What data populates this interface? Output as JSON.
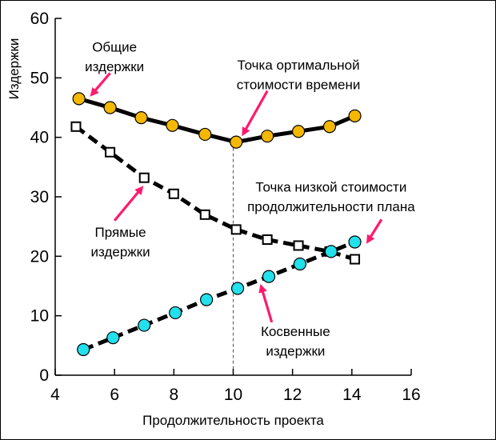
{
  "chart_data": {
    "type": "line",
    "xlabel": "Продолжительность проекта",
    "ylabel": "Издержки",
    "xlim": [
      4,
      16
    ],
    "ylim": [
      0,
      60
    ],
    "x_ticks": [
      4,
      6,
      8,
      10,
      12,
      14,
      16
    ],
    "y_ticks": [
      0,
      10,
      20,
      30,
      40,
      50,
      60
    ],
    "grid": false,
    "series": [
      {
        "key": "total",
        "marker": "circle",
        "color": "#f5b800",
        "x": [
          4.8,
          5.85,
          6.9,
          7.95,
          9.05,
          10.1,
          11.15,
          12.2,
          13.25,
          14.1
        ],
        "y": [
          46.5,
          45.0,
          43.3,
          42.0,
          40.5,
          39.2,
          40.2,
          41.0,
          41.8,
          43.6
        ]
      },
      {
        "key": "direct",
        "marker": "square",
        "color": "#ffffff",
        "x": [
          4.7,
          5.85,
          7.0,
          8.0,
          9.05,
          10.1,
          11.15,
          12.2,
          13.25,
          14.1
        ],
        "y": [
          41.8,
          37.5,
          33.2,
          30.5,
          27.0,
          24.5,
          22.8,
          21.8,
          20.8,
          19.5
        ]
      },
      {
        "key": "indirect",
        "marker": "circle",
        "color": "#22e0ec",
        "x": [
          4.95,
          5.95,
          7.0,
          8.05,
          9.1,
          10.15,
          11.2,
          12.25,
          13.3,
          14.1
        ],
        "y": [
          4.3,
          6.3,
          8.4,
          10.5,
          12.7,
          14.6,
          16.6,
          18.7,
          20.8,
          22.4
        ]
      }
    ],
    "reference_line": {
      "x": 10.0,
      "style": "dashed"
    },
    "annotations": [
      {
        "key": "total-label",
        "lines": [
          "Общие",
          "издержки"
        ],
        "anchor": "middle",
        "text_at": [
          6.0,
          54.4
        ],
        "line_gap": 3.3,
        "arrow_from": [
          5.85,
          50.8
        ],
        "arrow_to": [
          5.25,
          47.3
        ]
      },
      {
        "key": "optimal-point",
        "lines": [
          "Точка ортимальной",
          "стоимости времени"
        ],
        "anchor": "middle",
        "text_at": [
          12.2,
          51.4
        ],
        "line_gap": 3.3,
        "arrow_from": [
          11.15,
          47.8
        ],
        "arrow_to": [
          10.35,
          40.7
        ]
      },
      {
        "key": "direct-label",
        "lines": [
          "Прямые",
          "издержки"
        ],
        "anchor": "middle",
        "text_at": [
          6.2,
          23.3
        ],
        "line_gap": 3.3,
        "arrow_from": [
          6.0,
          26.0
        ],
        "arrow_to": [
          6.9,
          31.4
        ]
      },
      {
        "key": "low-cost-point",
        "lines": [
          "Точка низкой стоимости",
          "продолжительности плана"
        ],
        "anchor": "middle",
        "text_at": [
          13.3,
          30.9
        ],
        "line_gap": 3.3,
        "arrow_from": [
          15.0,
          26.2
        ],
        "arrow_to": [
          14.55,
          22.6
        ]
      },
      {
        "key": "indirect-label",
        "lines": [
          "Косвенные",
          "издержки"
        ],
        "anchor": "middle",
        "text_at": [
          12.1,
          6.6
        ],
        "line_gap": 3.3,
        "arrow_from": [
          11.3,
          8.9
        ],
        "arrow_to": [
          10.95,
          14.8
        ]
      }
    ],
    "colors": {
      "arrow": "#ff1a6e",
      "line": "#000000"
    }
  }
}
